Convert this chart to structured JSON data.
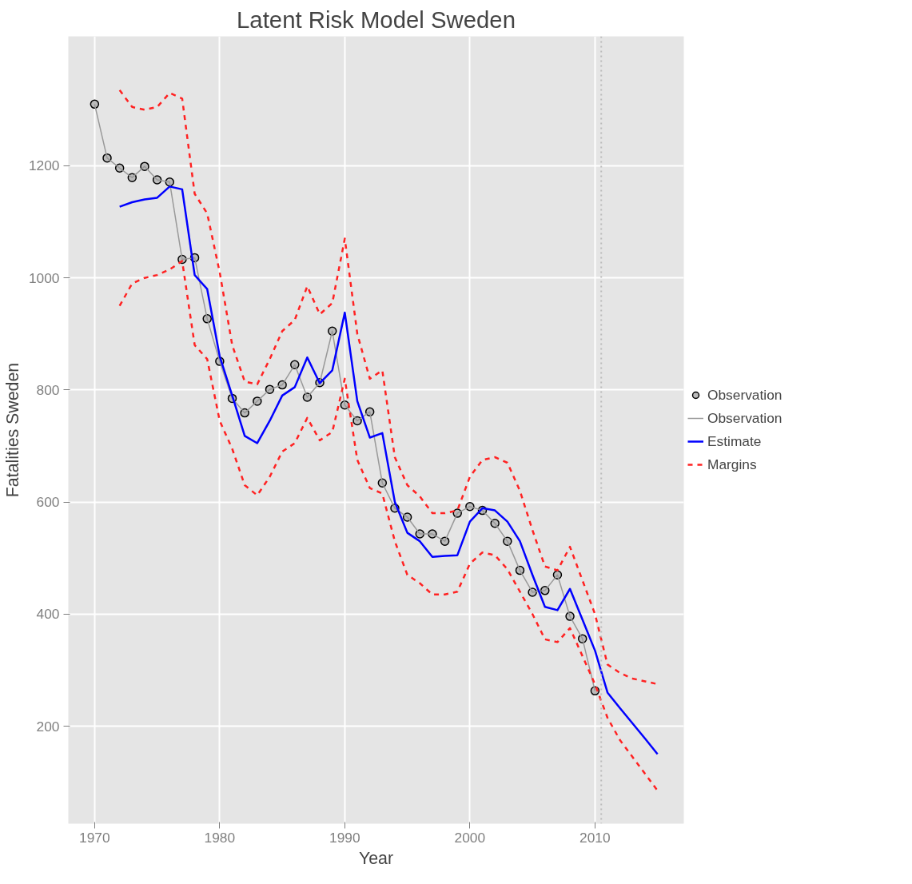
{
  "chart_data": {
    "type": "line",
    "title": "Latent Risk Model Sweden",
    "xlabel": "Year",
    "ylabel": "Fatalities Sweden",
    "xlim": [
      1967.9,
      2017.1
    ],
    "ylim": [
      26,
      1431
    ],
    "xticks": [
      1970,
      1980,
      1990,
      2000,
      2010
    ],
    "yticks": [
      200,
      400,
      600,
      800,
      1000,
      1200
    ],
    "grid": true,
    "legend": "right",
    "ref_lines": [
      {
        "axis": "x",
        "value": 2010.5,
        "label": null,
        "color": "#bbbbbb",
        "line_style": "dotted"
      }
    ],
    "series": [
      {
        "name": "Observation",
        "type": "scatter",
        "marker": "circle",
        "color": "#000000",
        "x": [
          1970,
          1971,
          1972,
          1973,
          1974,
          1975,
          1976,
          1977,
          1978,
          1979,
          1980,
          1981,
          1982,
          1983,
          1984,
          1985,
          1986,
          1987,
          1988,
          1989,
          1990,
          1991,
          1992,
          1993,
          1994,
          1995,
          1996,
          1997,
          1998,
          1999,
          2000,
          2001,
          2002,
          2003,
          2004,
          2005,
          2006,
          2007,
          2008,
          2009,
          2010
        ],
        "values": [
          1310,
          1214,
          1196,
          1179,
          1199,
          1175,
          1171,
          1033,
          1036,
          927,
          851,
          785,
          759,
          780,
          801,
          809,
          845,
          787,
          813,
          905,
          773,
          745,
          761,
          634,
          589,
          573,
          543,
          543,
          530,
          580,
          592,
          585,
          562,
          530,
          478,
          439,
          442,
          470,
          396,
          356,
          263
        ]
      },
      {
        "name": "Observation",
        "line_style": "solid",
        "color": "#999999",
        "x": [
          1970,
          1971,
          1972,
          1973,
          1974,
          1975,
          1976,
          1977,
          1978,
          1979,
          1980,
          1981,
          1982,
          1983,
          1984,
          1985,
          1986,
          1987,
          1988,
          1989,
          1990,
          1991,
          1992,
          1993,
          1994,
          1995,
          1996,
          1997,
          1998,
          1999,
          2000,
          2001,
          2002,
          2003,
          2004,
          2005,
          2006,
          2007,
          2008,
          2009,
          2010
        ],
        "values": [
          1310,
          1214,
          1196,
          1179,
          1199,
          1175,
          1171,
          1033,
          1036,
          927,
          851,
          785,
          759,
          780,
          801,
          809,
          845,
          787,
          813,
          905,
          773,
          745,
          761,
          634,
          589,
          573,
          543,
          543,
          530,
          580,
          592,
          585,
          562,
          530,
          478,
          439,
          442,
          470,
          396,
          356,
          263
        ]
      },
      {
        "name": "Estimate",
        "line_style": "solid",
        "color": "#0000ff",
        "x": [
          1972,
          1973,
          1974,
          1975,
          1976,
          1977,
          1978,
          1979,
          1980,
          1981,
          1982,
          1983,
          1984,
          1985,
          1986,
          1987,
          1988,
          1989,
          1990,
          1991,
          1992,
          1993,
          1994,
          1995,
          1996,
          1997,
          1998,
          1999,
          2000,
          2001,
          2002,
          2003,
          2004,
          2005,
          2006,
          2007,
          2008,
          2009,
          2010,
          2011,
          2012,
          2013,
          2014,
          2015
        ],
        "values": [
          1127,
          1135,
          1140,
          1143,
          1163,
          1158,
          1005,
          980,
          860,
          790,
          718,
          705,
          745,
          790,
          805,
          858,
          812,
          835,
          938,
          780,
          715,
          723,
          600,
          545,
          530,
          502,
          504,
          505,
          565,
          589,
          585,
          565,
          530,
          470,
          413,
          407,
          445,
          390,
          335,
          260,
          232,
          205,
          178,
          150
        ]
      },
      {
        "name": "Margins",
        "line_style": "dashed",
        "color": "#ff2222",
        "x": [
          1972,
          1973,
          1974,
          1975,
          1976,
          1977,
          1978,
          1979,
          1980,
          1981,
          1982,
          1983,
          1984,
          1985,
          1986,
          1987,
          1988,
          1989,
          1990,
          1991,
          1992,
          1993,
          1994,
          1995,
          1996,
          1997,
          1998,
          1999,
          2000,
          2001,
          2002,
          2003,
          2004,
          2005,
          2006,
          2007,
          2008,
          2009,
          2010,
          2011,
          2012,
          2013,
          2014,
          2015
        ],
        "values": [
          1335,
          1305,
          1300,
          1305,
          1330,
          1320,
          1150,
          1115,
          1010,
          880,
          815,
          810,
          855,
          905,
          925,
          985,
          935,
          955,
          1070,
          900,
          820,
          835,
          680,
          630,
          610,
          580,
          580,
          585,
          645,
          675,
          680,
          670,
          620,
          550,
          485,
          478,
          520,
          460,
          400,
          310,
          295,
          285,
          280,
          275
        ]
      },
      {
        "line_style": "dashed",
        "color": "#ff2222",
        "x": [
          1972,
          1973,
          1974,
          1975,
          1976,
          1977,
          1978,
          1979,
          1980,
          1981,
          1982,
          1983,
          1984,
          1985,
          1986,
          1987,
          1988,
          1989,
          1990,
          1991,
          1992,
          1993,
          1994,
          1995,
          1996,
          1997,
          1998,
          1999,
          2000,
          2001,
          2002,
          2003,
          2004,
          2005,
          2006,
          2007,
          2008,
          2009,
          2010,
          2011,
          2012,
          2013,
          2014,
          2015
        ],
        "values": [
          950,
          990,
          1000,
          1005,
          1015,
          1030,
          880,
          855,
          745,
          695,
          630,
          612,
          645,
          690,
          705,
          750,
          710,
          725,
          820,
          675,
          625,
          615,
          530,
          470,
          455,
          435,
          435,
          440,
          490,
          510,
          505,
          480,
          440,
          400,
          355,
          350,
          375,
          325,
          275,
          215,
          175,
          145,
          115,
          85
        ]
      }
    ]
  }
}
